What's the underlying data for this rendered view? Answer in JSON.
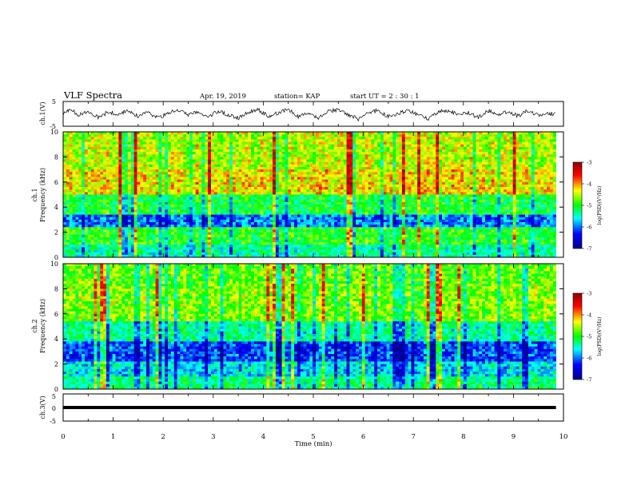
{
  "header": {
    "title": "VLF Spectra",
    "date": "Apr. 19, 2019",
    "station": "station= KAP",
    "start": "start  UT =  2 : 30 : 1"
  },
  "chart_data": [
    {
      "type": "line",
      "panel": "ch1-waveform",
      "ylabel": "ch.1(V)",
      "ylim": [
        -5,
        5
      ],
      "yticks": [
        "5",
        "-5"
      ],
      "xlim": [
        0,
        10
      ],
      "x_extent": [
        0,
        9.85
      ],
      "note_values": "continuous noisy waveform, amplitude roughly -2.5 V to +2.5 V around 0 V",
      "trace_points": [
        [
          0.0,
          0.2
        ],
        [
          0.15,
          1.8
        ],
        [
          0.3,
          -0.5
        ],
        [
          0.5,
          1.2
        ],
        [
          0.7,
          -1.5
        ],
        [
          0.9,
          0.8
        ],
        [
          1.1,
          -0.2
        ],
        [
          1.3,
          1.5
        ],
        [
          1.5,
          -1.0
        ],
        [
          1.7,
          0.6
        ],
        [
          1.9,
          -1.8
        ],
        [
          2.1,
          0.4
        ],
        [
          2.3,
          1.7
        ],
        [
          2.5,
          -0.6
        ],
        [
          2.7,
          0.9
        ],
        [
          2.9,
          -1.3
        ],
        [
          3.1,
          1.1
        ],
        [
          3.3,
          -0.4
        ],
        [
          3.5,
          -1.7
        ],
        [
          3.7,
          0.7
        ],
        [
          3.9,
          1.6
        ],
        [
          4.1,
          -0.9
        ],
        [
          4.3,
          0.3
        ],
        [
          4.5,
          1.9
        ],
        [
          4.7,
          -1.1
        ],
        [
          4.9,
          0.5
        ],
        [
          5.1,
          -1.6
        ],
        [
          5.3,
          1.0
        ],
        [
          5.5,
          1.8
        ],
        [
          5.7,
          -0.3
        ],
        [
          5.9,
          -2.2
        ],
        [
          6.1,
          0.6
        ],
        [
          6.3,
          1.4
        ],
        [
          6.5,
          -1.2
        ],
        [
          6.7,
          0.2
        ],
        [
          6.9,
          1.7
        ],
        [
          7.1,
          -0.8
        ],
        [
          7.3,
          -1.9
        ],
        [
          7.5,
          0.9
        ],
        [
          7.7,
          1.3
        ],
        [
          7.9,
          -0.5
        ],
        [
          8.1,
          0.4
        ],
        [
          8.3,
          -1.4
        ],
        [
          8.5,
          1.2
        ],
        [
          8.7,
          -0.2
        ],
        [
          8.9,
          0.8
        ],
        [
          9.1,
          -1.0
        ],
        [
          9.3,
          1.5
        ],
        [
          9.5,
          -0.7
        ],
        [
          9.7,
          0.3
        ],
        [
          9.85,
          -0.4
        ]
      ]
    },
    {
      "type": "heatmap",
      "panel": "ch1-spectrogram",
      "ylabel_line1": "ch.1",
      "ylabel_line2": "Frequency (kHz)",
      "ylim": [
        0,
        10
      ],
      "yticks": [
        "0",
        "2",
        "4",
        "6",
        "8",
        "10"
      ],
      "xlim": [
        0,
        10
      ],
      "x_extent": [
        0,
        9.85
      ],
      "colorbar": {
        "label": "log(PSD)(V²/Hz)",
        "range": [
          -7,
          -3
        ],
        "ticks": [
          "-3",
          "-4",
          "-5",
          "-6",
          "-7"
        ],
        "colormap": [
          "#00008b",
          "#0000ff",
          "#00ffff",
          "#00ff00",
          "#ffff00",
          "#ff0000",
          "#8b0000"
        ]
      },
      "band_levels": [
        {
          "freq": [
            0.0,
            1.0
          ],
          "level": -5.4
        },
        {
          "freq": [
            1.0,
            2.5
          ],
          "level": -5.0
        },
        {
          "freq": [
            2.5,
            3.4
          ],
          "level": -6.0
        },
        {
          "freq": [
            3.4,
            5.0
          ],
          "level": -5.1
        },
        {
          "freq": [
            5.0,
            7.0
          ],
          "level": -4.3
        },
        {
          "freq": [
            7.0,
            10.0
          ],
          "level": -4.5
        }
      ]
    },
    {
      "type": "heatmap",
      "panel": "ch2-spectrogram",
      "ylabel_line1": "ch.2",
      "ylabel_line2": "Frequency (kHz)",
      "ylim": [
        0,
        10
      ],
      "yticks": [
        "0",
        "2",
        "4",
        "6",
        "8",
        "10"
      ],
      "xlim": [
        0,
        10
      ],
      "x_extent": [
        0,
        9.85
      ],
      "colorbar": {
        "label": "log(PSD)(V²/Hz)",
        "range": [
          -7,
          -3
        ],
        "ticks": [
          "-3",
          "-4",
          "-5",
          "-6",
          "-7"
        ],
        "colormap": [
          "#00008b",
          "#0000ff",
          "#00ffff",
          "#00ff00",
          "#ffff00",
          "#ff0000",
          "#8b0000"
        ]
      },
      "band_levels": [
        {
          "freq": [
            0.0,
            1.0
          ],
          "level": -5.3
        },
        {
          "freq": [
            1.0,
            2.3
          ],
          "level": -5.7
        },
        {
          "freq": [
            2.3,
            3.8
          ],
          "level": -6.2
        },
        {
          "freq": [
            3.8,
            5.5
          ],
          "level": -5.4
        },
        {
          "freq": [
            5.5,
            8.5
          ],
          "level": -4.7
        },
        {
          "freq": [
            8.5,
            10.0
          ],
          "level": -4.8
        }
      ]
    },
    {
      "type": "line",
      "panel": "ch3-waveform",
      "ylabel": "ch.3(V)",
      "ylim": [
        -5,
        5
      ],
      "yticks": [
        "5",
        "0",
        "-5"
      ],
      "xlim": [
        0,
        10
      ],
      "x_extent": [
        0,
        9.85
      ],
      "constant_value": 0,
      "xlabel": "Time (min)",
      "xticks": [
        "0",
        "1",
        "2",
        "3",
        "4",
        "5",
        "6",
        "7",
        "8",
        "9",
        "10"
      ]
    }
  ]
}
